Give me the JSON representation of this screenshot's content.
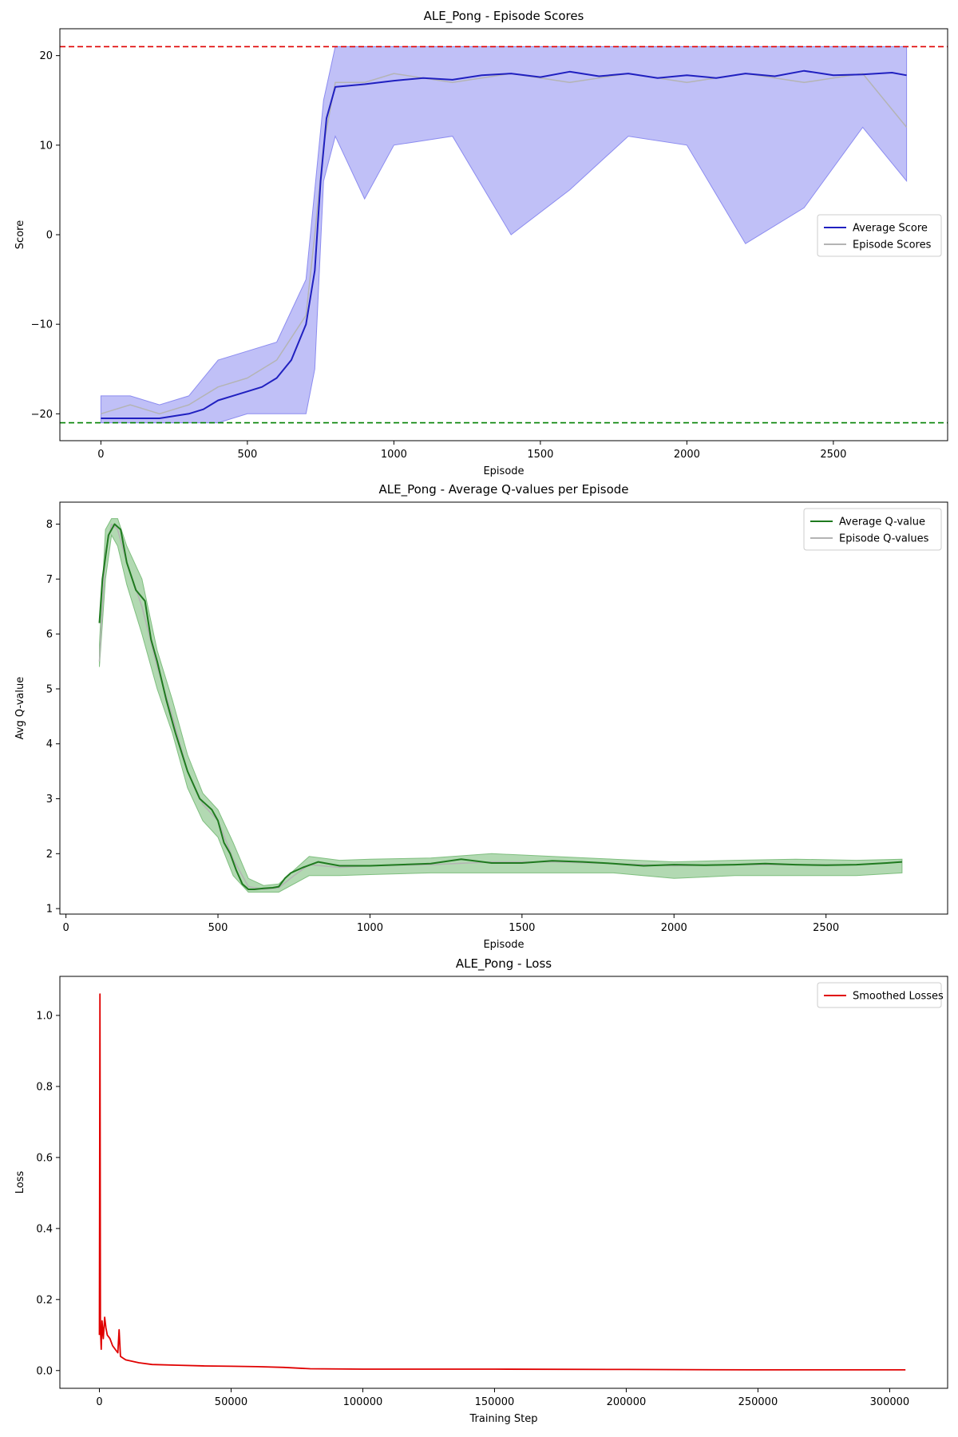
{
  "colors": {
    "avg_score": "#2020c0",
    "score_band": "#8c8cf0",
    "episode_line": "#b4b4b4",
    "max_ref": "#e00000",
    "min_ref": "#008000",
    "avg_q": "#1f7a1f",
    "q_band": "#7fbf7f",
    "loss": "#e00000"
  },
  "chart_data": [
    {
      "type": "line",
      "title": "ALE_Pong - Episode Scores",
      "xlabel": "Episode",
      "ylabel": "Score",
      "xlim": [
        -140,
        2890
      ],
      "ylim": [
        -23,
        23
      ],
      "xticks": [
        0,
        500,
        1000,
        1500,
        2000,
        2500
      ],
      "yticks": [
        -20,
        -10,
        0,
        10,
        20
      ],
      "ytick_labels": [
        "−20",
        "−10",
        "0",
        "10",
        "20"
      ],
      "legend": "center-right",
      "reference_lines": [
        {
          "y": 21,
          "color": "#e00000",
          "style": "dashed"
        },
        {
          "y": -21,
          "color": "#008000",
          "style": "dashed"
        }
      ],
      "series": [
        {
          "name": "Average Score",
          "x": [
            0,
            100,
            200,
            300,
            350,
            400,
            450,
            500,
            550,
            600,
            650,
            700,
            730,
            750,
            770,
            800,
            900,
            1000,
            1100,
            1200,
            1300,
            1400,
            1500,
            1600,
            1700,
            1800,
            1900,
            2000,
            2100,
            2200,
            2300,
            2400,
            2500,
            2600,
            2700,
            2750
          ],
          "y": [
            -20.5,
            -20.5,
            -20.5,
            -20.0,
            -19.5,
            -18.5,
            -18.0,
            -17.5,
            -17.0,
            -16.0,
            -14.0,
            -10.0,
            -4.0,
            6.0,
            13.0,
            16.5,
            16.8,
            17.2,
            17.5,
            17.3,
            17.8,
            18.0,
            17.6,
            18.2,
            17.7,
            18.0,
            17.5,
            17.8,
            17.5,
            18.0,
            17.7,
            18.3,
            17.8,
            17.9,
            18.1,
            17.8
          ]
        },
        {
          "name": "Episode Scores",
          "x": [
            0,
            100,
            200,
            300,
            400,
            500,
            600,
            700,
            730,
            760,
            800,
            900,
            1000,
            1200,
            1400,
            1600,
            1800,
            2000,
            2200,
            2400,
            2600,
            2750
          ],
          "y": [
            -20,
            -19,
            -20,
            -19,
            -17,
            -16,
            -14,
            -9,
            0,
            10,
            17,
            17,
            18,
            17,
            18,
            17,
            18,
            17,
            18,
            17,
            18,
            12
          ],
          "band_upper": [
            -18,
            -18,
            -19,
            -18,
            -14,
            -13,
            -12,
            -5,
            5,
            15,
            21,
            21,
            21,
            21,
            21,
            21,
            21,
            21,
            21,
            21,
            21,
            21
          ],
          "band_lower": [
            -21,
            -21,
            -21,
            -21,
            -21,
            -20,
            -20,
            -20,
            -15,
            6,
            11,
            4,
            10,
            11,
            0,
            5,
            11,
            10,
            -1,
            3,
            12,
            6
          ]
        }
      ]
    },
    {
      "type": "line",
      "title": "ALE_Pong - Average Q-values per Episode",
      "xlabel": "Episode",
      "ylabel": "Avg Q-value",
      "xlim": [
        -20,
        2900
      ],
      "ylim": [
        0.9,
        8.4
      ],
      "xticks": [
        0,
        500,
        1000,
        1500,
        2000,
        2500
      ],
      "yticks": [
        1,
        2,
        3,
        4,
        5,
        6,
        7,
        8
      ],
      "legend": "top-right",
      "series": [
        {
          "name": "Average Q-value",
          "x": [
            110,
            120,
            140,
            160,
            180,
            200,
            230,
            260,
            280,
            300,
            330,
            360,
            400,
            440,
            480,
            500,
            520,
            540,
            560,
            580,
            600,
            620,
            650,
            680,
            700,
            720,
            740,
            780,
            830,
            900,
            1000,
            1100,
            1200,
            1300,
            1400,
            1500,
            1600,
            1700,
            1800,
            1900,
            2000,
            2100,
            2200,
            2300,
            2400,
            2500,
            2600,
            2700,
            2750
          ],
          "y": [
            6.2,
            7.0,
            7.8,
            8.0,
            7.9,
            7.3,
            6.8,
            6.6,
            5.9,
            5.5,
            4.8,
            4.2,
            3.5,
            3.0,
            2.8,
            2.6,
            2.2,
            2.0,
            1.7,
            1.45,
            1.35,
            1.35,
            1.37,
            1.38,
            1.4,
            1.55,
            1.65,
            1.75,
            1.85,
            1.78,
            1.78,
            1.8,
            1.82,
            1.9,
            1.83,
            1.83,
            1.87,
            1.85,
            1.82,
            1.78,
            1.8,
            1.79,
            1.8,
            1.82,
            1.8,
            1.79,
            1.8,
            1.83,
            1.85
          ]
        },
        {
          "name": "Episode Q-values",
          "x": [
            110,
            130,
            150,
            170,
            200,
            250,
            300,
            350,
            400,
            450,
            500,
            550,
            600,
            650,
            700,
            750,
            800,
            900,
            1000,
            1200,
            1400,
            1600,
            1800,
            2000,
            2200,
            2400,
            2600,
            2750
          ],
          "y": [
            5.5,
            7.5,
            8.0,
            7.9,
            7.3,
            6.5,
            5.4,
            4.5,
            3.5,
            2.9,
            2.6,
            1.9,
            1.4,
            1.35,
            1.38,
            1.6,
            1.8,
            1.75,
            1.78,
            1.8,
            1.85,
            1.85,
            1.82,
            1.78,
            1.8,
            1.8,
            1.8,
            1.85
          ],
          "band_upper": [
            5.8,
            7.9,
            8.1,
            8.1,
            7.6,
            7.0,
            5.7,
            4.8,
            3.8,
            3.1,
            2.8,
            2.2,
            1.55,
            1.42,
            1.45,
            1.7,
            1.95,
            1.88,
            1.9,
            1.92,
            2.0,
            1.95,
            1.9,
            1.85,
            1.88,
            1.9,
            1.88,
            1.9
          ],
          "band_lower": [
            5.4,
            7.0,
            7.8,
            7.6,
            6.9,
            6.0,
            5.0,
            4.2,
            3.2,
            2.6,
            2.3,
            1.6,
            1.3,
            1.3,
            1.3,
            1.45,
            1.6,
            1.6,
            1.62,
            1.65,
            1.65,
            1.65,
            1.65,
            1.55,
            1.6,
            1.6,
            1.6,
            1.65
          ]
        }
      ]
    },
    {
      "type": "line",
      "title": "ALE_Pong - Loss",
      "xlabel": "Training Step",
      "ylabel": "Loss",
      "xlim": [
        -15000,
        322000
      ],
      "ylim": [
        -0.05,
        1.11
      ],
      "xticks": [
        0,
        50000,
        100000,
        150000,
        200000,
        250000,
        300000
      ],
      "yticks": [
        0.0,
        0.2,
        0.4,
        0.6,
        0.8,
        1.0
      ],
      "ytick_labels": [
        "0.0",
        "0.2",
        "0.4",
        "0.6",
        "0.8",
        "1.0"
      ],
      "legend": "top-right",
      "series": [
        {
          "name": "Smoothed Losses",
          "x": [
            0,
            200,
            400,
            700,
            1000,
            1500,
            2000,
            2500,
            3000,
            4000,
            5000,
            6000,
            7000,
            7500,
            8000,
            9000,
            10000,
            15000,
            20000,
            30000,
            40000,
            50000,
            60000,
            70000,
            80000,
            100000,
            150000,
            200000,
            250000,
            300000,
            306000
          ],
          "y": [
            0.1,
            1.06,
            0.12,
            0.06,
            0.14,
            0.09,
            0.15,
            0.12,
            0.1,
            0.09,
            0.07,
            0.06,
            0.05,
            0.115,
            0.04,
            0.035,
            0.03,
            0.022,
            0.017,
            0.015,
            0.013,
            0.012,
            0.011,
            0.009,
            0.005,
            0.004,
            0.004,
            0.003,
            0.002,
            0.002,
            0.002
          ]
        }
      ]
    }
  ]
}
